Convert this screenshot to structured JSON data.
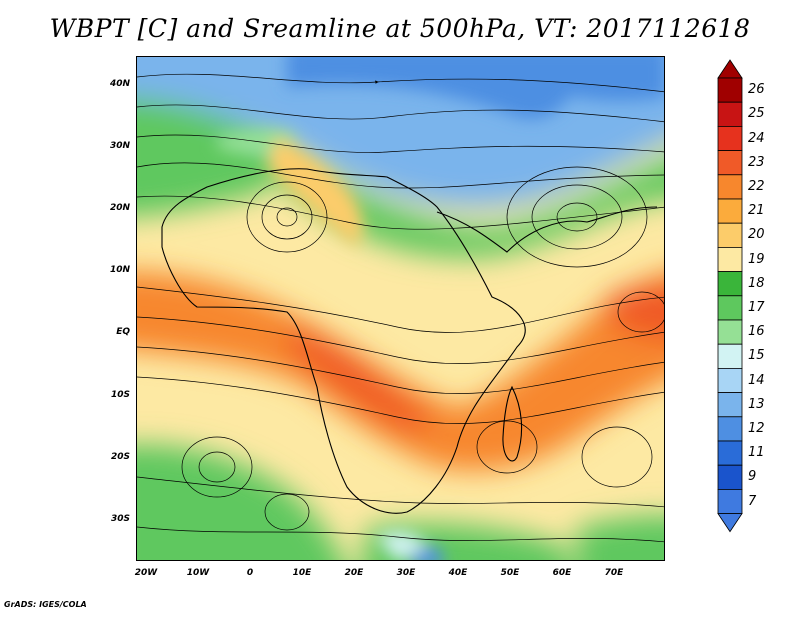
{
  "title": "WBPT [C] and Sreamline at 500hPa, VT: 2017112618",
  "credit": "GrADS: IGES/COLA",
  "map": {
    "variable": "WBPT",
    "level": "500hPa",
    "lon_range": [
      -23,
      80
    ],
    "lat_range": [
      -37,
      45
    ],
    "lat_labels": [
      "40N",
      "30N",
      "20N",
      "10N",
      "EQ",
      "10S",
      "20S",
      "30S"
    ],
    "lon_labels": [
      "20W",
      "10W",
      "0",
      "10E",
      "20E",
      "30E",
      "40E",
      "50E",
      "60E",
      "70E"
    ]
  },
  "colorbar": {
    "labels": [
      "26",
      "25",
      "24",
      "23",
      "22",
      "21",
      "20",
      "19",
      "18",
      "17",
      "16",
      "15",
      "14",
      "13",
      "12",
      "11",
      "9",
      "7"
    ],
    "colors": [
      "#a00000",
      "#c81414",
      "#e6321e",
      "#f05a28",
      "#f7872d",
      "#fbab3c",
      "#fccc6a",
      "#fde9a3",
      "#3ab53a",
      "#5ec85e",
      "#95e095",
      "#d2f3f3",
      "#a8d5f5",
      "#7ab4ec",
      "#4e8fe2",
      "#2a6cd8",
      "#1a54cc",
      "#3f7ae0"
    ]
  }
}
